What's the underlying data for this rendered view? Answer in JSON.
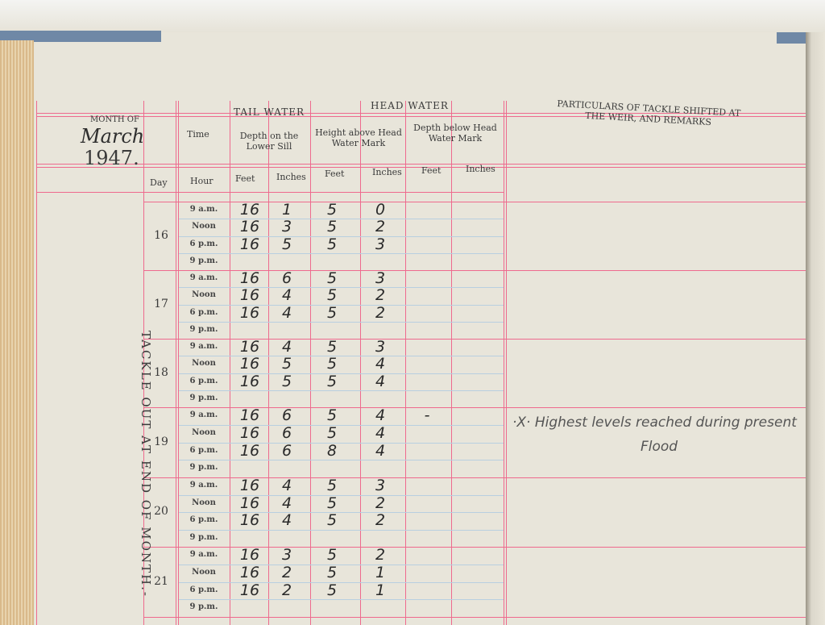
{
  "header": {
    "month_label": "MONTH OF",
    "month": "March",
    "year": "1947.",
    "time": "Time",
    "tail_water": "TAIL WATER",
    "tail_sub": "Depth on the Lower Sill",
    "head_water": "HEAD WATER",
    "head_above": "Height above Head Water Mark",
    "head_below": "Depth below Head Water Mark",
    "remarks": "PARTICULARS OF TACKLE SHIFTED AT THE WEIR, AND REMARKS",
    "day": "Day",
    "hour": "Hour",
    "feet": "Feet",
    "inches": "Inches"
  },
  "side_label": "TACKLE OUT AT END OF MONTH.-",
  "hours": [
    "9 a.m.",
    "Noon",
    "6 p.m.",
    "9 p.m."
  ],
  "days": [
    {
      "day": "16",
      "rows": [
        [
          "16",
          "1",
          "5",
          "0",
          ""
        ],
        [
          "16",
          "3",
          "5",
          "2",
          ""
        ],
        [
          "16",
          "5",
          "5",
          "3",
          ""
        ],
        [
          "",
          "",
          "",
          "",
          ""
        ]
      ]
    },
    {
      "day": "17",
      "rows": [
        [
          "16",
          "6",
          "5",
          "3",
          ""
        ],
        [
          "16",
          "4",
          "5",
          "2",
          ""
        ],
        [
          "16",
          "4",
          "5",
          "2",
          ""
        ],
        [
          "",
          "",
          "",
          "",
          ""
        ]
      ]
    },
    {
      "day": "18",
      "rows": [
        [
          "16",
          "4",
          "5",
          "3",
          ""
        ],
        [
          "16",
          "5",
          "5",
          "4",
          ""
        ],
        [
          "16",
          "5",
          "5",
          "4",
          ""
        ],
        [
          "",
          "",
          "",
          "",
          ""
        ]
      ]
    },
    {
      "day": "19",
      "rows": [
        [
          "16",
          "6",
          "5",
          "4",
          "-"
        ],
        [
          "16",
          "6",
          "5",
          "4",
          ""
        ],
        [
          "16",
          "6",
          "8",
          "4",
          ""
        ],
        [
          "",
          "",
          "",
          "",
          ""
        ]
      ]
    },
    {
      "day": "20",
      "rows": [
        [
          "16",
          "4",
          "5",
          "3",
          ""
        ],
        [
          "16",
          "4",
          "5",
          "2",
          ""
        ],
        [
          "16",
          "4",
          "5",
          "2",
          ""
        ],
        [
          "",
          "",
          "",
          "",
          ""
        ]
      ]
    },
    {
      "day": "21",
      "rows": [
        [
          "16",
          "3",
          "5",
          "2",
          ""
        ],
        [
          "16",
          "2",
          "5",
          "1",
          ""
        ],
        [
          "16",
          "2",
          "5",
          "1",
          ""
        ],
        [
          "",
          "",
          "",
          "",
          ""
        ]
      ]
    }
  ],
  "remark": {
    "line1": "·X· Highest levels reached during present",
    "line2": "Flood"
  },
  "colors": {
    "rule": "#ee6a8e",
    "paper": "#e8e5da",
    "ink": "#2a2a2a"
  }
}
